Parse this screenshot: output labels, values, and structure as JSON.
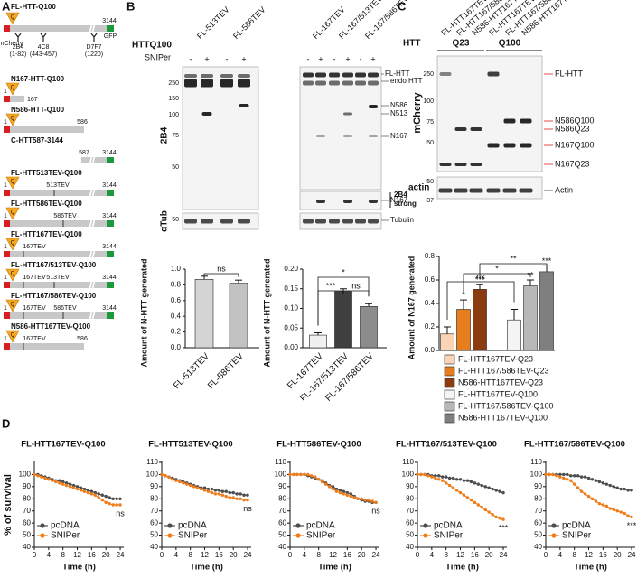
{
  "panel_labels": [
    "A",
    "B",
    "C",
    "D"
  ],
  "polyq_label": "Q",
  "constructs": [
    {
      "name": "FL-HTT-Q100",
      "texts": [
        "mCherry",
        "3144",
        "GFP",
        "2B4",
        "(1-82)",
        "4C8",
        "(443-457)",
        "D7F7",
        "(1220)"
      ]
    },
    {
      "name": "N167-HTT-Q100",
      "texts": [
        "1",
        "167"
      ]
    },
    {
      "name": "N586-HTT-Q100",
      "texts": [
        "1",
        "586"
      ]
    },
    {
      "name": "C-HTT587-3144",
      "texts": [
        "587",
        "3144"
      ]
    },
    {
      "name": "FL-HTT513TEV-Q100",
      "texts": [
        "1",
        "513TEV",
        "3144"
      ]
    },
    {
      "name": "FL-HTT586TEV-Q100",
      "texts": [
        "1",
        "586TEV",
        "3144"
      ]
    },
    {
      "name": "FL-HTT167TEV-Q100",
      "texts": [
        "1",
        "167TEV",
        "3144"
      ]
    },
    {
      "name": "FL-HTT167/513TEV-Q100",
      "texts": [
        "1",
        "167TEV",
        "513TEV",
        "3144"
      ]
    },
    {
      "name": "FL-HTT167/586TEV-Q100",
      "texts": [
        "1",
        "167TEV",
        "586TEV",
        "3144"
      ]
    },
    {
      "name": "N586-HTT167TEV-Q100",
      "texts": [
        "1",
        "167TEV",
        "586"
      ]
    }
  ],
  "blot_b": {
    "row_label": "HTTQ100",
    "sniper_label": "SNIPer",
    "signs": [
      "-",
      "+"
    ],
    "lanes": [
      "FL-513TEV",
      "FL-586TEV",
      "FL-167TEV",
      "FL-167/513TEV",
      "FL-167/586TEV"
    ],
    "antibody": "2B4",
    "loading": "αTub",
    "markers": [
      "250",
      "150",
      "100",
      "75",
      "50"
    ],
    "loading_marker": "50",
    "bands": [
      "FL-HTT",
      "endo HTT",
      "N586",
      "N513",
      "N167",
      "N167",
      "2B4",
      "strong",
      "Tubulin"
    ]
  },
  "blot_c": {
    "row_label": "HTT",
    "groups": [
      "Q23",
      "Q100"
    ],
    "lanes": [
      "FL-HTT167TEV",
      "FL-HTT167/586TEV",
      "N586-HTT167TEV",
      "FL-HTT167TEV",
      "FL-HTT167/586TEV",
      "N586-HTT167TEV"
    ],
    "antibody": "mCherry",
    "loading": "actin",
    "markers": [
      "250",
      "100",
      "75",
      "50"
    ],
    "loading_markers": [
      "50",
      "37"
    ],
    "bands": [
      "FL-HTT",
      "N586Q100",
      "N586Q23",
      "N167Q100",
      "N167Q23",
      "Actin"
    ]
  },
  "chart_data": [
    {
      "type": "bar",
      "ylabel": "Amount of N-HTT generated",
      "categories": [
        "FL-513TEV",
        "FL-586TEV"
      ],
      "values": [
        0.87,
        0.82
      ],
      "errors": [
        0.04,
        0.04
      ],
      "colors": [
        "#d4d4d4",
        "#c2c2c2"
      ],
      "ylim": [
        0,
        1
      ],
      "yticks": [
        {
          "value": 0,
          "label": "0.0"
        },
        0.2,
        0.4,
        0.6,
        0.8,
        {
          "value": 1,
          "label": "1.0"
        }
      ],
      "brackets": [
        "ns"
      ]
    },
    {
      "type": "bar",
      "ylabel": "Amount of N-HTT generated",
      "categories": [
        "FL-167TEV",
        "FL-167/513TEV",
        "FL-167/586TEV"
      ],
      "values": [
        0.032,
        0.143,
        0.105
      ],
      "errors": [
        0.006,
        0.007,
        0.007
      ],
      "colors": [
        "#f0f0f0",
        "#404040",
        "#8c8c8c"
      ],
      "ylim": [
        0,
        0.2
      ],
      "yticks": [
        {
          "value": 0,
          "label": "0.00"
        },
        0.05,
        {
          "value": 0.1,
          "label": "0.10"
        },
        0.15,
        {
          "value": 0.2,
          "label": "0.20"
        }
      ],
      "brackets": [
        "***",
        "ns",
        "*"
      ]
    },
    {
      "type": "bar",
      "ylabel": "Amount of N167 generated",
      "categories": [
        "FL-HTT167TEV-Q23",
        "FL-HTT167/586TEV-Q23",
        "N586-HTT167TEV-Q23",
        "FL-HTT167TEV-Q100",
        "FL-HTT167/586TEV-Q100",
        "N586-HTT167TEV-Q100"
      ],
      "values": [
        0.14,
        0.35,
        0.52,
        0.26,
        0.55,
        0.67
      ],
      "errors": [
        0.06,
        0.08,
        0.04,
        0.09,
        0.05,
        0.05
      ],
      "colors": [
        "#fbd3b5",
        "#e67e1e",
        "#8a3b10",
        "#f4f4f4",
        "#b8b8b8",
        "#7f7f7f"
      ],
      "stars": [
        null,
        "*",
        "***",
        null,
        "**",
        "***"
      ],
      "ylim": [
        0,
        0.8
      ],
      "yticks": [
        {
          "value": 0,
          "label": "0.0"
        },
        0.2,
        0.4,
        0.6,
        0.8
      ],
      "brackets": [
        "ns",
        "*",
        "**"
      ]
    },
    {
      "type": "line",
      "title": "FL-HTT167TEV-Q100",
      "ylabel": "% of survival",
      "xlabel": "Time (h)",
      "x": [
        0,
        1,
        2,
        3,
        4,
        5,
        6,
        7,
        8,
        9,
        10,
        11,
        12,
        13,
        14,
        15,
        16,
        17,
        18,
        19,
        20,
        21,
        22,
        23,
        24
      ],
      "xlim": [
        0,
        25
      ],
      "xticks": [
        0,
        4,
        8,
        12,
        16,
        20,
        24
      ],
      "ylim": [
        40,
        110
      ],
      "yticks": [
        40,
        50,
        60,
        70,
        80,
        90,
        100
      ],
      "series": [
        {
          "name": "pcDNA",
          "color": "#4d4d4d",
          "values": [
            100,
            100,
            99,
            98,
            97,
            96,
            95,
            95,
            94,
            93,
            92,
            91,
            90,
            89,
            88,
            87,
            86,
            85,
            84,
            83,
            82,
            81,
            80,
            80,
            80
          ]
        },
        {
          "name": "SNIPer",
          "color": "#ef7d1a",
          "values": [
            100,
            99,
            98,
            97,
            96,
            95,
            94,
            93,
            92,
            91,
            90,
            89,
            88,
            87,
            86,
            85,
            84,
            83,
            81,
            79,
            77,
            76,
            75,
            75,
            75
          ]
        }
      ],
      "annotation": "ns"
    },
    {
      "type": "line",
      "title": "FL-HTT513TEV-Q100",
      "xlabel": "Time (h)",
      "x": [
        0,
        1,
        2,
        3,
        4,
        5,
        6,
        7,
        8,
        9,
        10,
        11,
        12,
        13,
        14,
        15,
        16,
        17,
        18,
        19,
        20,
        21,
        22,
        23,
        24
      ],
      "xlim": [
        0,
        25
      ],
      "xticks": [
        0,
        4,
        8,
        12,
        16,
        20,
        24
      ],
      "ylim": [
        40,
        110
      ],
      "yticks": [
        40,
        50,
        60,
        70,
        80,
        90,
        100,
        110
      ],
      "series": [
        {
          "name": "pcDNA",
          "color": "#4d4d4d",
          "values": [
            100,
            99,
            98,
            97,
            96,
            95,
            94,
            93,
            92,
            91,
            90,
            89,
            89,
            88,
            88,
            87,
            87,
            86,
            86,
            85,
            85,
            84,
            84,
            83,
            83
          ]
        },
        {
          "name": "SNIPer",
          "color": "#ef7d1a",
          "values": [
            100,
            99,
            98,
            96,
            95,
            94,
            93,
            92,
            91,
            90,
            89,
            88,
            87,
            86,
            85,
            84,
            84,
            83,
            82,
            81,
            81,
            80,
            80,
            79,
            79
          ]
        }
      ],
      "annotation": "ns"
    },
    {
      "type": "line",
      "title": "FL-HTT586TEV-Q100",
      "xlabel": "Time (h)",
      "x": [
        0,
        1,
        2,
        3,
        4,
        5,
        6,
        7,
        8,
        9,
        10,
        11,
        12,
        13,
        14,
        15,
        16,
        17,
        18,
        19,
        20,
        21,
        22,
        23,
        24
      ],
      "xlim": [
        0,
        25
      ],
      "xticks": [
        0,
        4,
        8,
        12,
        16,
        20,
        24
      ],
      "ylim": [
        40,
        110
      ],
      "yticks": [
        40,
        50,
        60,
        70,
        80,
        90,
        100,
        110
      ],
      "series": [
        {
          "name": "pcDNA",
          "color": "#4d4d4d",
          "values": [
            100,
            100,
            100,
            100,
            100,
            99,
            98,
            97,
            96,
            95,
            93,
            91,
            90,
            88,
            87,
            86,
            85,
            84,
            82,
            80,
            79,
            78,
            78,
            77,
            77
          ]
        },
        {
          "name": "SNIPer",
          "color": "#ef7d1a",
          "values": [
            100,
            100,
            100,
            100,
            100,
            100,
            99,
            98,
            96,
            94,
            92,
            90,
            88,
            86,
            85,
            84,
            83,
            82,
            81,
            80,
            80,
            79,
            79,
            78,
            77
          ]
        }
      ],
      "annotation": "ns"
    },
    {
      "type": "line",
      "title": "FL-HTT167/513TEV-Q100",
      "xlabel": "Time (h)",
      "x": [
        0,
        1,
        2,
        3,
        4,
        5,
        6,
        7,
        8,
        9,
        10,
        11,
        12,
        13,
        14,
        15,
        16,
        17,
        18,
        19,
        20,
        21,
        22,
        23,
        24
      ],
      "xlim": [
        0,
        25
      ],
      "xticks": [
        0,
        4,
        8,
        12,
        16,
        20,
        24
      ],
      "ylim": [
        40,
        110
      ],
      "yticks": [
        40,
        50,
        60,
        70,
        80,
        90,
        100,
        110
      ],
      "series": [
        {
          "name": "pcDNA",
          "color": "#4d4d4d",
          "values": [
            100,
            100,
            100,
            100,
            99,
            99,
            99,
            98,
            98,
            97,
            97,
            96,
            96,
            95,
            95,
            94,
            93,
            92,
            91,
            90,
            89,
            88,
            87,
            86,
            85
          ]
        },
        {
          "name": "SNIPer",
          "color": "#ef7d1a",
          "values": [
            100,
            100,
            100,
            99,
            98,
            97,
            96,
            95,
            93,
            91,
            89,
            87,
            85,
            83,
            81,
            79,
            77,
            75,
            73,
            71,
            69,
            67,
            65,
            64,
            63
          ]
        }
      ],
      "annotation": "***"
    },
    {
      "type": "line",
      "title": "FL-HTT167/586TEV-Q100",
      "xlabel": "Time (h)",
      "x": [
        0,
        1,
        2,
        3,
        4,
        5,
        6,
        7,
        8,
        9,
        10,
        11,
        12,
        13,
        14,
        15,
        16,
        17,
        18,
        19,
        20,
        21,
        22,
        23,
        24
      ],
      "xlim": [
        0,
        25
      ],
      "xticks": [
        0,
        4,
        8,
        12,
        16,
        20,
        24
      ],
      "ylim": [
        40,
        110
      ],
      "yticks": [
        40,
        50,
        60,
        70,
        80,
        90,
        100,
        110
      ],
      "series": [
        {
          "name": "pcDNA",
          "color": "#4d4d4d",
          "values": [
            100,
            100,
            100,
            100,
            100,
            100,
            100,
            99,
            99,
            99,
            98,
            98,
            97,
            96,
            95,
            94,
            93,
            92,
            91,
            90,
            89,
            88,
            88,
            87,
            87
          ]
        },
        {
          "name": "SNIPer",
          "color": "#ef7d1a",
          "values": [
            100,
            100,
            100,
            99,
            98,
            97,
            96,
            95,
            92,
            89,
            86,
            84,
            82,
            80,
            78,
            76,
            75,
            74,
            72,
            71,
            70,
            69,
            68,
            66,
            65
          ]
        }
      ],
      "annotation": "***"
    }
  ]
}
